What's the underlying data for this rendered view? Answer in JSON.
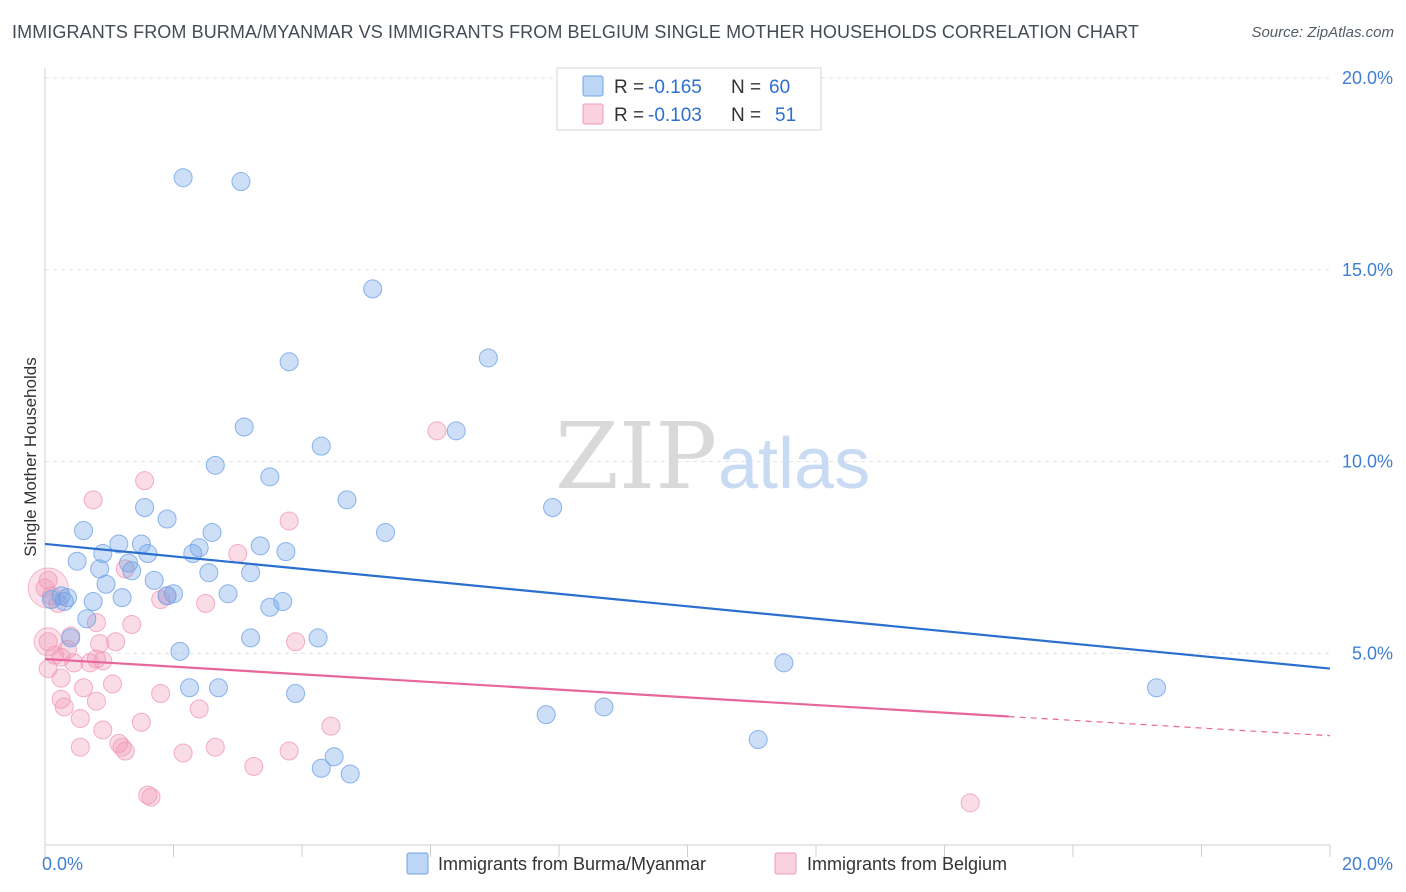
{
  "title": "IMMIGRANTS FROM BURMA/MYANMAR VS IMMIGRANTS FROM BELGIUM SINGLE MOTHER HOUSEHOLDS CORRELATION CHART",
  "source": "Source: ZipAtlas.com",
  "watermark": {
    "zip": "ZIP",
    "atlas": "atlas"
  },
  "colors": {
    "blue": "#6fa3e8",
    "blue_line": "#2a6fce",
    "pink": "#f19ab8",
    "pink_line": "#e8679a"
  },
  "legend": {
    "r_label": "R = ",
    "n_label": "N = ",
    "rows": [
      {
        "r": "-0.165",
        "n": "60"
      },
      {
        "r": "-0.103",
        "n": "51"
      }
    ]
  },
  "chart_data": {
    "type": "scatter",
    "title": "IMMIGRANTS FROM BURMA/MYANMAR VS IMMIGRANTS FROM BELGIUM SINGLE MOTHER HOUSEHOLDS CORRELATION CHART",
    "xlabel": "",
    "ylabel": "Single Mother Households",
    "xlim": [
      0,
      20
    ],
    "ylim": [
      0,
      20
    ],
    "x_tick_labels": [
      "0.0%",
      "20.0%"
    ],
    "y_ticks": [
      5,
      10,
      15,
      20
    ],
    "y_tick_labels": [
      "5.0%",
      "10.0%",
      "15.0%",
      "20.0%"
    ],
    "grid": true,
    "legend_position": "top-center",
    "series": [
      {
        "name": "Immigrants from Burma/Myanmar",
        "R": -0.165,
        "N": 60,
        "trend": {
          "x": [
            0,
            20
          ],
          "y": [
            7.85,
            4.6
          ],
          "solid_until": 20
        },
        "points": [
          [
            2.15,
            17.4
          ],
          [
            3.05,
            17.3
          ],
          [
            5.1,
            14.5
          ],
          [
            3.8,
            12.6
          ],
          [
            6.9,
            12.7
          ],
          [
            3.1,
            10.9
          ],
          [
            6.4,
            10.8
          ],
          [
            4.3,
            10.4
          ],
          [
            2.65,
            9.9
          ],
          [
            3.5,
            9.6
          ],
          [
            4.7,
            9.0
          ],
          [
            1.55,
            8.8
          ],
          [
            7.9,
            8.8
          ],
          [
            1.9,
            8.5
          ],
          [
            0.6,
            8.2
          ],
          [
            2.6,
            8.15
          ],
          [
            5.3,
            8.15
          ],
          [
            1.15,
            7.85
          ],
          [
            1.5,
            7.85
          ],
          [
            3.35,
            7.8
          ],
          [
            2.4,
            7.75
          ],
          [
            2.3,
            7.6
          ],
          [
            1.6,
            7.6
          ],
          [
            3.75,
            7.65
          ],
          [
            0.9,
            7.6
          ],
          [
            1.3,
            7.35
          ],
          [
            0.5,
            7.4
          ],
          [
            0.85,
            7.2
          ],
          [
            1.35,
            7.15
          ],
          [
            2.55,
            7.1
          ],
          [
            3.2,
            7.1
          ],
          [
            1.7,
            6.9
          ],
          [
            0.95,
            6.8
          ],
          [
            2.0,
            6.55
          ],
          [
            2.85,
            6.55
          ],
          [
            0.25,
            6.5
          ],
          [
            0.35,
            6.45
          ],
          [
            1.2,
            6.45
          ],
          [
            1.9,
            6.5
          ],
          [
            0.1,
            6.4
          ],
          [
            0.3,
            6.35
          ],
          [
            0.75,
            6.35
          ],
          [
            3.7,
            6.35
          ],
          [
            3.5,
            6.2
          ],
          [
            0.65,
            5.9
          ],
          [
            3.2,
            5.4
          ],
          [
            4.25,
            5.4
          ],
          [
            2.1,
            5.05
          ],
          [
            11.5,
            4.75
          ],
          [
            2.25,
            4.1
          ],
          [
            2.7,
            4.1
          ],
          [
            3.9,
            3.95
          ],
          [
            17.3,
            4.1
          ],
          [
            7.8,
            3.4
          ],
          [
            8.7,
            3.6
          ],
          [
            11.1,
            2.75
          ],
          [
            4.5,
            2.3
          ],
          [
            4.3,
            2.0
          ],
          [
            4.75,
            1.85
          ],
          [
            0.4,
            5.4
          ]
        ]
      },
      {
        "name": "Immigrants from Belgium",
        "R": -0.103,
        "N": 51,
        "trend": {
          "x": [
            0,
            20
          ],
          "y": [
            4.85,
            2.85
          ],
          "solid_until": 15
        },
        "points": [
          [
            0.05,
            6.9
          ],
          [
            0.0,
            6.7
          ],
          [
            0.1,
            6.5
          ],
          [
            0.2,
            6.3
          ],
          [
            1.55,
            9.5
          ],
          [
            0.75,
            9.0
          ],
          [
            6.1,
            10.8
          ],
          [
            3.8,
            8.45
          ],
          [
            3.0,
            7.6
          ],
          [
            1.25,
            7.2
          ],
          [
            1.8,
            6.4
          ],
          [
            2.5,
            6.3
          ],
          [
            0.8,
            5.8
          ],
          [
            1.35,
            5.75
          ],
          [
            0.4,
            5.45
          ],
          [
            0.85,
            5.25
          ],
          [
            1.1,
            5.3
          ],
          [
            3.9,
            5.3
          ],
          [
            0.05,
            5.3
          ],
          [
            0.35,
            5.1
          ],
          [
            0.25,
            4.9
          ],
          [
            0.8,
            4.85
          ],
          [
            0.9,
            4.8
          ],
          [
            0.45,
            4.75
          ],
          [
            0.05,
            4.6
          ],
          [
            0.25,
            4.35
          ],
          [
            1.05,
            4.2
          ],
          [
            0.6,
            4.1
          ],
          [
            1.8,
            3.95
          ],
          [
            0.25,
            3.8
          ],
          [
            0.3,
            3.6
          ],
          [
            0.8,
            3.75
          ],
          [
            2.4,
            3.55
          ],
          [
            0.55,
            3.3
          ],
          [
            1.5,
            3.2
          ],
          [
            4.45,
            3.1
          ],
          [
            0.9,
            3.0
          ],
          [
            1.15,
            2.65
          ],
          [
            1.2,
            2.55
          ],
          [
            0.55,
            2.55
          ],
          [
            1.25,
            2.45
          ],
          [
            2.15,
            2.4
          ],
          [
            2.65,
            2.55
          ],
          [
            3.8,
            2.45
          ],
          [
            3.25,
            2.05
          ],
          [
            1.6,
            1.3
          ],
          [
            1.65,
            1.25
          ],
          [
            14.4,
            1.1
          ],
          [
            0.15,
            4.95
          ],
          [
            1.9,
            6.5
          ],
          [
            0.7,
            4.75
          ]
        ]
      }
    ]
  }
}
